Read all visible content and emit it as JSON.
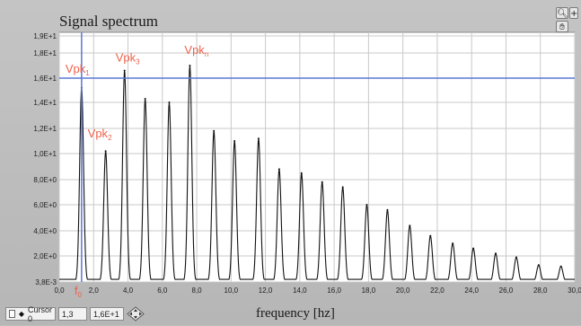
{
  "window": {
    "title": "Signal spectrum",
    "zoom_tool_icon": "zoom-icon",
    "pan_tool_icon": "hand-icon"
  },
  "cursor_bar": {
    "label": "Cursor 0",
    "x_value": "1,3",
    "y_value": "1,6E+1",
    "move_icon": "cursor-move-diamond-icon"
  },
  "colors": {
    "plot_background": "#ffffff",
    "grid": "#c9c9c9",
    "trace": "#111111",
    "cursor": "#5a78d8",
    "annotation": "#f0604a"
  },
  "annotations": [
    {
      "base": "Vpk",
      "sub": "1"
    },
    {
      "base": "Vpk",
      "sub": "2"
    },
    {
      "base": "Vpk",
      "sub": "3"
    },
    {
      "base": "Vpk",
      "sub": "n"
    }
  ],
  "f0_label": {
    "base": "f",
    "sub": "0"
  },
  "chart_data": {
    "type": "line",
    "title": "Signal spectrum",
    "xlabel": "frequency [hz]",
    "ylabel": "",
    "xlim": [
      0,
      30
    ],
    "ylim": [
      0.0038,
      19
    ],
    "grid": true,
    "x_tick_labels": [
      "0,0",
      "2,0",
      "4,0",
      "6,0",
      "8,0",
      "10,0",
      "12,0",
      "14,0",
      "16,0",
      "18,0",
      "20,0",
      "22,0",
      "24,0",
      "26,0",
      "28,0",
      "30,0"
    ],
    "y_tick_labels": [
      "3,8E-3",
      "2,0E+0",
      "4,0E+0",
      "6,0E+0",
      "8,0E+0",
      "1,0E+1",
      "1,2E+1",
      "1,4E+1",
      "1,6E+1",
      "1,8E+1",
      "1,9E+1"
    ],
    "y_tick_values": [
      0.0038,
      2,
      4,
      6,
      8,
      10,
      12,
      14,
      16,
      18,
      19
    ],
    "peaks": [
      {
        "x": 1.3,
        "y": 15.2
      },
      {
        "x": 2.7,
        "y": 10.2
      },
      {
        "x": 3.8,
        "y": 16.6
      },
      {
        "x": 5.0,
        "y": 14.3
      },
      {
        "x": 6.4,
        "y": 14.0
      },
      {
        "x": 7.6,
        "y": 17.0
      },
      {
        "x": 9.0,
        "y": 11.8
      },
      {
        "x": 10.2,
        "y": 11.0
      },
      {
        "x": 11.6,
        "y": 11.2
      },
      {
        "x": 12.8,
        "y": 8.8
      },
      {
        "x": 14.1,
        "y": 8.5
      },
      {
        "x": 15.3,
        "y": 7.8
      },
      {
        "x": 16.5,
        "y": 7.4
      },
      {
        "x": 17.9,
        "y": 6.0
      },
      {
        "x": 19.1,
        "y": 5.6
      },
      {
        "x": 20.4,
        "y": 4.4
      },
      {
        "x": 21.6,
        "y": 3.6
      },
      {
        "x": 22.9,
        "y": 3.0
      },
      {
        "x": 24.1,
        "y": 2.6
      },
      {
        "x": 25.4,
        "y": 2.2
      },
      {
        "x": 26.6,
        "y": 1.9
      },
      {
        "x": 27.9,
        "y": 1.3
      },
      {
        "x": 29.2,
        "y": 1.2
      }
    ],
    "cursor": {
      "x": 1.3,
      "y": 16.0
    }
  }
}
